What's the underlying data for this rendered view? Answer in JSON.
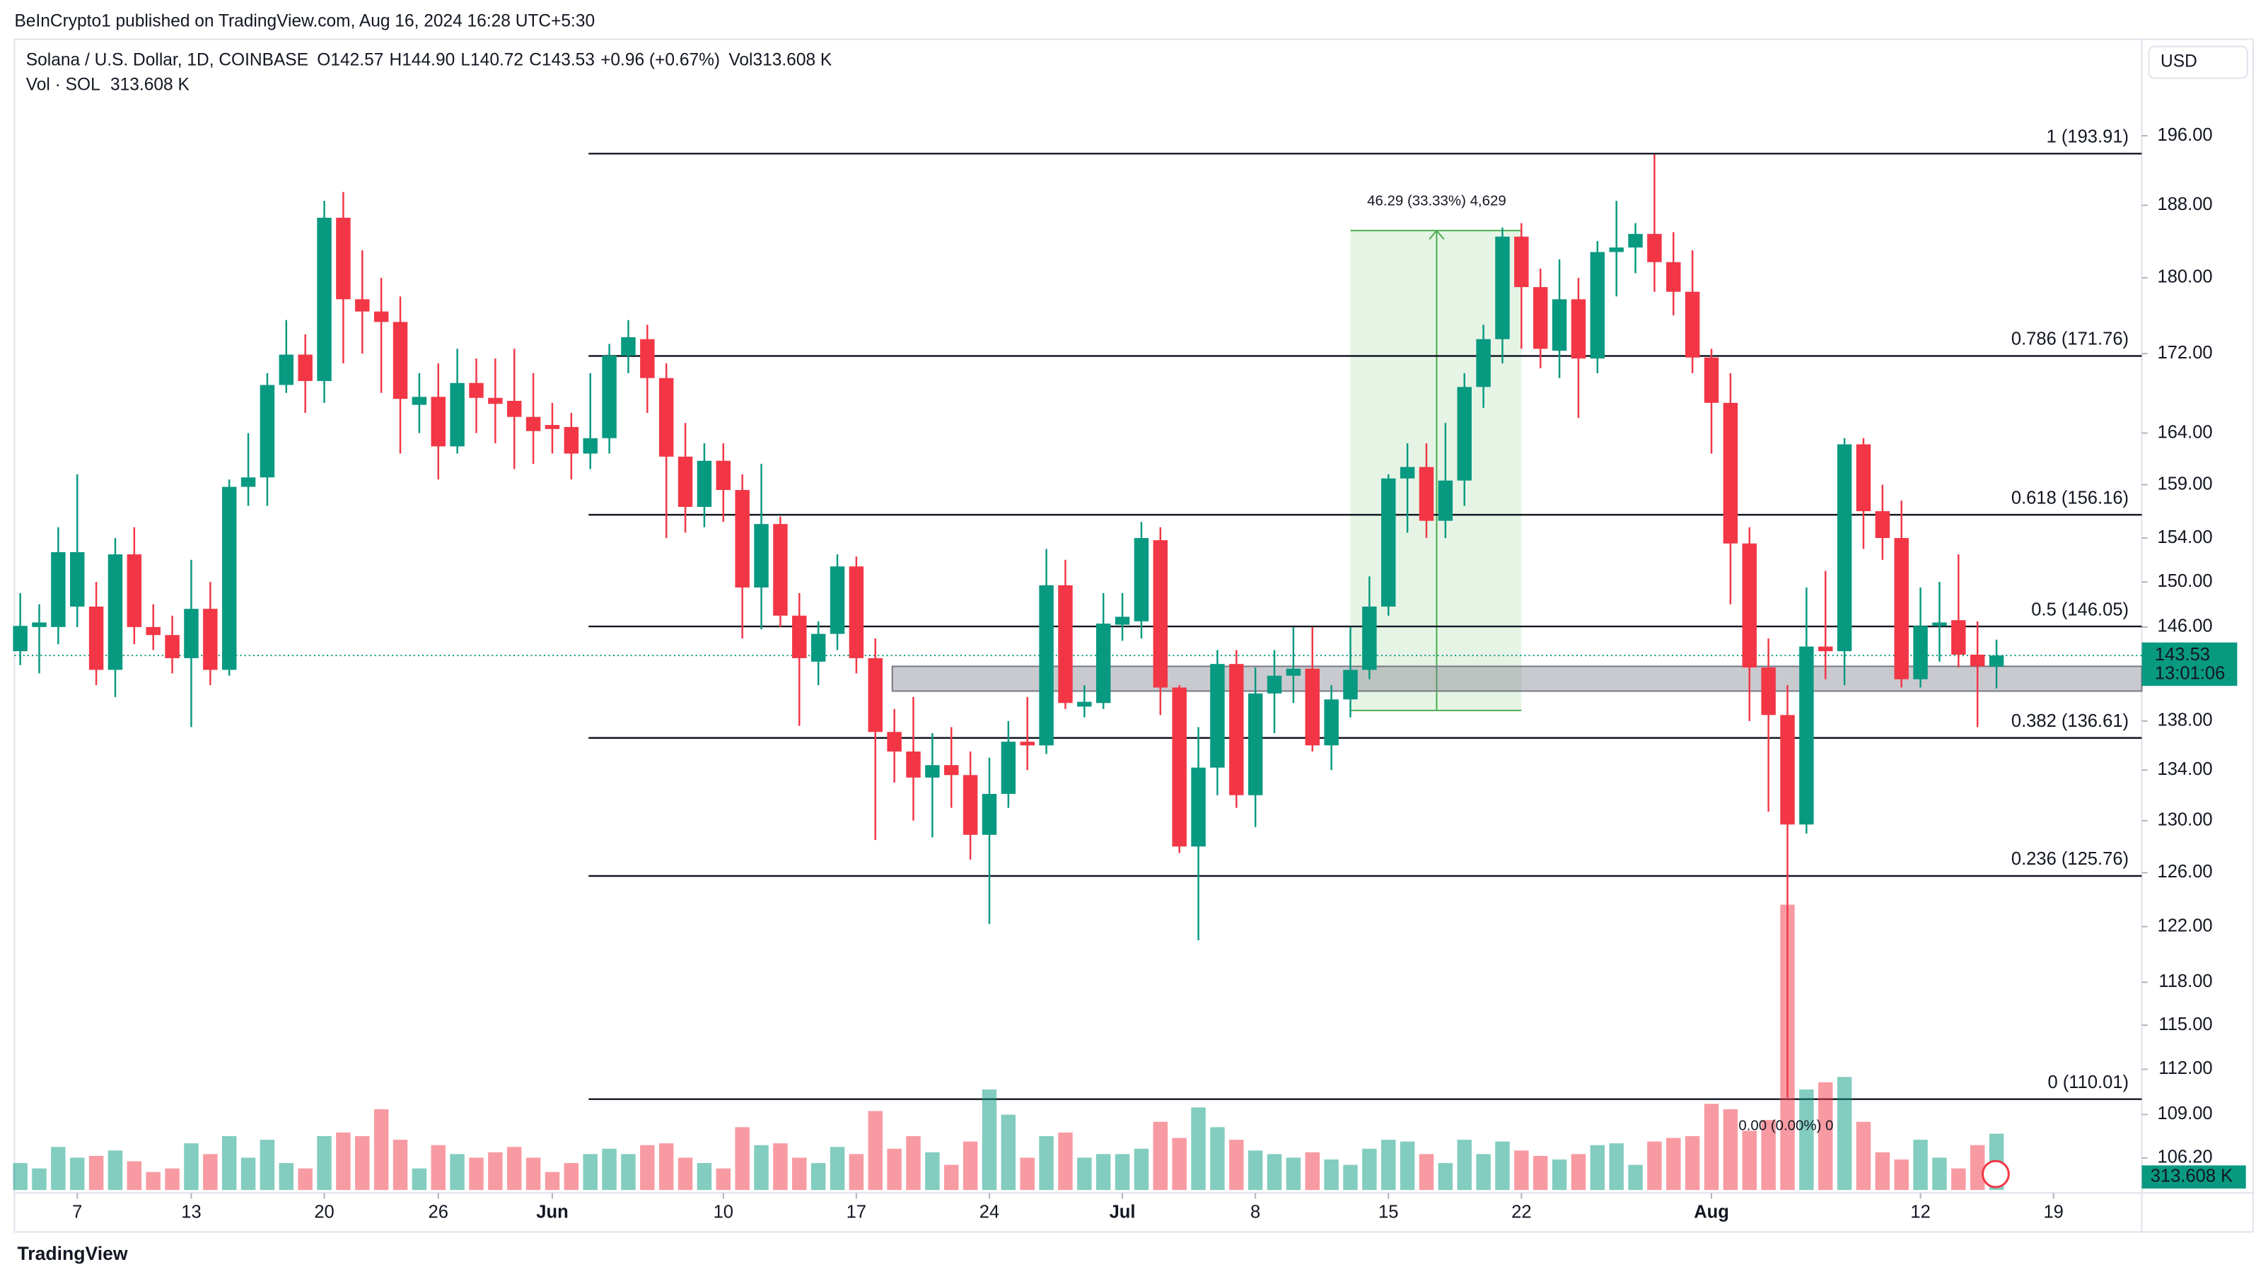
{
  "header": {
    "published": "BeInCrypto1 published on TradingView.com, Aug 16, 2024 16:28 UTC+5:30",
    "brand": "TradingView"
  },
  "chart_data": {
    "type": "candlestick",
    "title": "Solana / U.S. Dollar, 1D, COINBASE",
    "legend_values": [
      {
        "name": "O",
        "value": 142.57,
        "label": "142.57"
      },
      {
        "name": "H",
        "value": 144.9,
        "label": "144.90"
      },
      {
        "name": "L",
        "value": 140.72,
        "label": "140.72"
      },
      {
        "name": "C",
        "value": 143.53,
        "label": "143.53"
      }
    ],
    "change": {
      "value": 0.96,
      "label": "+0.96 (+0.67%)"
    },
    "legend_volume": {
      "name": "Vol",
      "value": 313.608,
      "label": "313.608 K"
    },
    "volume_title": "Vol · SOL",
    "currency": "USD",
    "x": [
      "2024-05-04",
      "2024-05-05",
      "2024-05-06",
      "2024-05-07",
      "2024-05-08",
      "2024-05-09",
      "2024-05-10",
      "2024-05-11",
      "2024-05-12",
      "2024-05-13",
      "2024-05-14",
      "2024-05-15",
      "2024-05-16",
      "2024-05-17",
      "2024-05-18",
      "2024-05-19",
      "2024-05-20",
      "2024-05-21",
      "2024-05-22",
      "2024-05-23",
      "2024-05-24",
      "2024-05-25",
      "2024-05-26",
      "2024-05-27",
      "2024-05-28",
      "2024-05-29",
      "2024-05-30",
      "2024-05-31",
      "2024-06-01",
      "2024-06-02",
      "2024-06-03",
      "2024-06-04",
      "2024-06-05",
      "2024-06-06",
      "2024-06-07",
      "2024-06-08",
      "2024-06-09",
      "2024-06-10",
      "2024-06-11",
      "2024-06-12",
      "2024-06-13",
      "2024-06-14",
      "2024-06-15",
      "2024-06-16",
      "2024-06-17",
      "2024-06-18",
      "2024-06-19",
      "2024-06-20",
      "2024-06-21",
      "2024-06-22",
      "2024-06-23",
      "2024-06-24",
      "2024-06-25",
      "2024-06-26",
      "2024-06-27",
      "2024-06-28",
      "2024-06-29",
      "2024-06-30",
      "2024-07-01",
      "2024-07-02",
      "2024-07-03",
      "2024-07-04",
      "2024-07-05",
      "2024-07-06",
      "2024-07-07",
      "2024-07-08",
      "2024-07-09",
      "2024-07-10",
      "2024-07-11",
      "2024-07-12",
      "2024-07-13",
      "2024-07-14",
      "2024-07-15",
      "2024-07-16",
      "2024-07-17",
      "2024-07-18",
      "2024-07-19",
      "2024-07-20",
      "2024-07-21",
      "2024-07-22",
      "2024-07-23",
      "2024-07-24",
      "2024-07-25",
      "2024-07-26",
      "2024-07-27",
      "2024-07-28",
      "2024-07-29",
      "2024-07-30",
      "2024-07-31",
      "2024-08-01",
      "2024-08-02",
      "2024-08-03",
      "2024-08-04",
      "2024-08-05",
      "2024-08-06",
      "2024-08-07",
      "2024-08-08",
      "2024-08-09",
      "2024-08-10",
      "2024-08-11",
      "2024-08-12",
      "2024-08-13",
      "2024-08-14",
      "2024-08-15",
      "2024-08-16"
    ],
    "open": [
      143.9,
      146,
      146,
      147.8,
      147.8,
      142.3,
      152.5,
      146,
      145.3,
      143.3,
      147.6,
      142.3,
      158.8,
      159.7,
      168.8,
      171.9,
      169.2,
      186.6,
      177.7,
      176.4,
      175.3,
      166.8,
      167.6,
      162.7,
      169,
      167.5,
      167.2,
      165.6,
      164.8,
      164.6,
      162,
      163.5,
      171.8,
      173.5,
      169.5,
      161.7,
      156.9,
      161.3,
      158.5,
      149.5,
      155.3,
      147,
      143,
      145.4,
      151.4,
      143.3,
      137.1,
      135.5,
      133.4,
      134.4,
      133.6,
      128.9,
      132.1,
      136.3,
      136,
      149.7,
      139.2,
      139.5,
      146.2,
      146.5,
      153.8,
      140.8,
      128,
      134.2,
      142.8,
      132,
      140.3,
      141.8,
      142.4,
      136,
      139.8,
      142.3,
      147.8,
      159.6,
      160.7,
      155.6,
      159.4,
      168.6,
      173.5,
      184.5,
      179,
      172.3,
      177.7,
      171.5,
      182.8,
      183.3,
      184.8,
      181.7,
      178.5,
      171.6,
      167,
      153.5,
      142.5,
      138.5,
      129.7,
      144.3,
      143.9,
      162.9,
      156.5,
      154,
      141.5,
      146.1,
      146.6,
      143.6,
      142.57
    ],
    "high": [
      149,
      148,
      155,
      160,
      150,
      154,
      155,
      148,
      147,
      152,
      150,
      159.5,
      164,
      170,
      175.5,
      174,
      188.5,
      189.5,
      183,
      180,
      178,
      170,
      171,
      172.5,
      171.5,
      171.5,
      172.5,
      170,
      167,
      166,
      170,
      173,
      175.5,
      175,
      171,
      165,
      163,
      163,
      160,
      161,
      156,
      149,
      146.5,
      152.5,
      152.3,
      145,
      139,
      140,
      137,
      137.5,
      135.5,
      135,
      138,
      140,
      153,
      152,
      141,
      149,
      149,
      155.5,
      155,
      141,
      137.5,
      144,
      144,
      142.5,
      144,
      146,
      146,
      141,
      146,
      150.5,
      160,
      163,
      163,
      165,
      170,
      175,
      185.5,
      186,
      181,
      182,
      180,
      184,
      188.5,
      186,
      193.8,
      185,
      183,
      172.5,
      170,
      155,
      145,
      141,
      149.5,
      151,
      163.5,
      163.5,
      159,
      157.5,
      149.5,
      150,
      152.5,
      146.5,
      144.9
    ],
    "low": [
      142.7,
      142,
      144.5,
      146,
      141,
      140,
      144.5,
      144,
      142,
      137.5,
      141,
      141.8,
      157,
      157,
      168,
      166,
      167,
      171,
      172,
      168,
      162,
      164,
      159.5,
      162,
      164,
      163,
      160.5,
      161,
      162,
      159.5,
      160.5,
      162,
      170,
      166,
      154,
      154.5,
      155,
      155.5,
      145,
      145.8,
      146,
      137.6,
      141,
      144,
      142,
      128.5,
      133,
      130,
      128.7,
      131,
      127,
      122.2,
      131,
      134,
      135.3,
      139,
      138.3,
      139,
      144.8,
      145,
      138.5,
      127.5,
      121,
      132,
      131,
      129.5,
      137,
      139.5,
      135.5,
      134,
      138.3,
      141.5,
      147,
      154.5,
      154,
      154,
      157,
      166.5,
      171,
      172.5,
      170.5,
      169.5,
      165.5,
      170,
      178,
      180.5,
      178.5,
      176,
      170,
      162,
      148,
      138,
      130.7,
      110.1,
      129,
      141.5,
      141,
      153,
      152,
      140.8,
      140.8,
      143,
      142.5,
      137.5,
      140.72
    ],
    "close": [
      146.1,
      146.4,
      152.7,
      152.7,
      142.3,
      152.5,
      146,
      145.3,
      143.3,
      147.6,
      142.3,
      158.8,
      159.7,
      168.8,
      171.9,
      169.2,
      186.6,
      177.7,
      176.4,
      175.3,
      167.4,
      167.6,
      162.7,
      169,
      167.5,
      166.9,
      165.6,
      164.2,
      164.4,
      162,
      163.5,
      171.8,
      173.7,
      169.5,
      161.7,
      156.9,
      161.3,
      158.5,
      149.5,
      155.3,
      147,
      143.3,
      145.4,
      151.4,
      143.3,
      137.1,
      135.5,
      133.4,
      134.4,
      133.6,
      128.9,
      132.1,
      136.3,
      136,
      149.7,
      139.5,
      139.6,
      146.3,
      146.9,
      154,
      140.8,
      128,
      134.2,
      142.8,
      132,
      140.3,
      141.8,
      142.4,
      136,
      139.8,
      142.3,
      147.8,
      159.6,
      160.7,
      155.6,
      159.4,
      168.6,
      173.5,
      184.5,
      179,
      172.5,
      177.7,
      171.5,
      182.8,
      183.3,
      184.8,
      181.7,
      178.5,
      171.6,
      167,
      153.5,
      142.5,
      138.5,
      129.7,
      144.3,
      143.9,
      162.9,
      156.5,
      154,
      141.5,
      146.1,
      146.4,
      143.6,
      142.6,
      143.53
    ],
    "volume": [
      150,
      120,
      240,
      180,
      190,
      220,
      160,
      100,
      120,
      260,
      200,
      300,
      180,
      280,
      150,
      120,
      300,
      320,
      300,
      450,
      280,
      120,
      250,
      200,
      180,
      210,
      240,
      180,
      100,
      150,
      200,
      230,
      200,
      250,
      260,
      180,
      150,
      120,
      350,
      250,
      260,
      180,
      150,
      240,
      200,
      440,
      230,
      300,
      210,
      140,
      270,
      560,
      420,
      180,
      300,
      320,
      180,
      200,
      200,
      230,
      380,
      290,
      460,
      350,
      280,
      220,
      200,
      180,
      210,
      170,
      140,
      230,
      280,
      270,
      200,
      150,
      280,
      200,
      270,
      220,
      190,
      170,
      200,
      250,
      260,
      140,
      270,
      290,
      300,
      480,
      450,
      330,
      390,
      1590,
      560,
      600,
      630,
      380,
      210,
      170,
      280,
      180,
      120,
      250,
      313.608
    ],
    "volume_lim": [
      0,
      1700
    ],
    "ylim": [
      104,
      207.5
    ],
    "log_scale": true,
    "yticks": [
      {
        "value": 196,
        "label": "196.00"
      },
      {
        "value": 188,
        "label": "188.00"
      },
      {
        "value": 180,
        "label": "180.00"
      },
      {
        "value": 172,
        "label": "172.00"
      },
      {
        "value": 164,
        "label": "164.00"
      },
      {
        "value": 159,
        "label": "159.00"
      },
      {
        "value": 154,
        "label": "154.00"
      },
      {
        "value": 150,
        "label": "150.00"
      },
      {
        "value": 146,
        "label": "146.00"
      },
      {
        "value": 138,
        "label": "138.00"
      },
      {
        "value": 134,
        "label": "134.00"
      },
      {
        "value": 130,
        "label": "130.00"
      },
      {
        "value": 126,
        "label": "126.00"
      },
      {
        "value": 122,
        "label": "122.00"
      },
      {
        "value": 118,
        "label": "118.00"
      },
      {
        "value": 115,
        "label": "115.00"
      },
      {
        "value": 112,
        "label": "112.00"
      },
      {
        "value": 109,
        "label": "109.00"
      },
      {
        "value": 106.2,
        "label": "106.20"
      }
    ],
    "xticks": [
      {
        "value": "2024-05-07",
        "label": "7"
      },
      {
        "value": "2024-05-13",
        "label": "13"
      },
      {
        "value": "2024-05-20",
        "label": "20"
      },
      {
        "value": "2024-05-26",
        "label": "26"
      },
      {
        "value": "2024-06-01",
        "label": "Jun"
      },
      {
        "value": "2024-06-10",
        "label": "10"
      },
      {
        "value": "2024-06-17",
        "label": "17"
      },
      {
        "value": "2024-06-24",
        "label": "24"
      },
      {
        "value": "2024-07-01",
        "label": "Jul"
      },
      {
        "value": "2024-07-08",
        "label": "8"
      },
      {
        "value": "2024-07-15",
        "label": "15"
      },
      {
        "value": "2024-07-22",
        "label": "22"
      },
      {
        "value": "2024-08-01",
        "label": "Aug"
      },
      {
        "value": "2024-08-12",
        "label": "12"
      },
      {
        "value": "2024-08-19",
        "label": "19"
      }
    ],
    "up_color": "#089981",
    "down_color": "#f23645",
    "fib_levels": [
      {
        "value": 193.91,
        "label": "1 (193.91)"
      },
      {
        "value": 171.76,
        "label": "0.786 (171.76)"
      },
      {
        "value": 156.16,
        "label": "0.618 (156.16)"
      },
      {
        "value": 146.05,
        "label": "0.5 (146.05)"
      },
      {
        "value": 136.61,
        "label": "0.382 (136.61)"
      },
      {
        "value": 125.76,
        "label": "0.236 (125.76)"
      },
      {
        "value": 110.01,
        "label": "0 (110.01)"
      }
    ],
    "zone": [
      140.5,
      142.6
    ],
    "measure": {
      "start": "2024-07-13",
      "end": "2024-07-22",
      "low": 138.88,
      "high": 185.17,
      "label": "46.29 (33.33%) 4,629"
    },
    "measure_small": "0.00 (0.00%) 0",
    "last_price": 143.53,
    "countdown": "13:01:06"
  }
}
